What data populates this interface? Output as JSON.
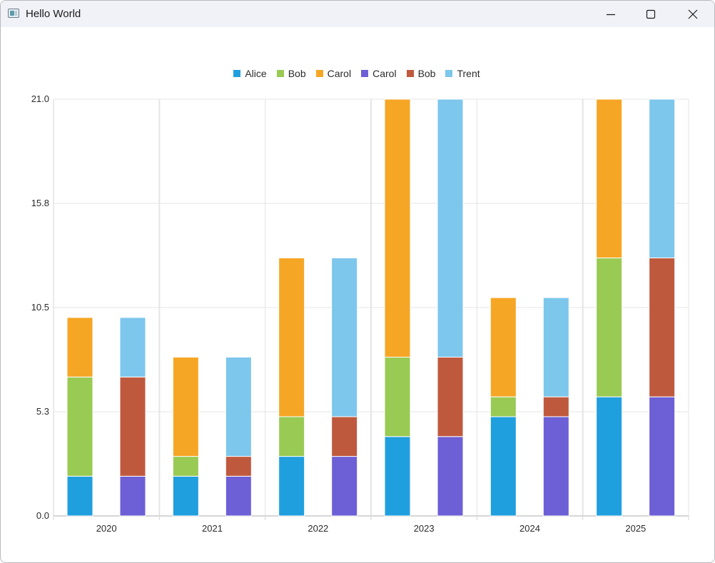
{
  "window": {
    "title": "Hello World",
    "minimize_icon": "minimize-icon",
    "maximize_icon": "maximize-icon",
    "close_icon": "close-icon"
  },
  "colors": {
    "Alice": "#209fdf",
    "Bob": "#99ca53",
    "Carol": "#f6a625",
    "Carol2": "#6d5fd5",
    "Bob2": "#bf593e",
    "Trent": "#7dc6ec",
    "grid": "#e4e4e4",
    "axis": "#d6d6d6"
  },
  "legend": [
    {
      "label": "Alice",
      "color": "#209fdf"
    },
    {
      "label": "Bob",
      "color": "#99ca53"
    },
    {
      "label": "Carol",
      "color": "#f6a625"
    },
    {
      "label": "Carol",
      "color": "#6d5fd5"
    },
    {
      "label": "Bob",
      "color": "#bf593e"
    },
    {
      "label": "Trent",
      "color": "#7dc6ec"
    }
  ],
  "chart_data": {
    "type": "bar",
    "stacked": true,
    "categories": [
      "2020",
      "2021",
      "2022",
      "2023",
      "2024",
      "2025"
    ],
    "ylim": [
      0,
      21.0
    ],
    "yticks": [
      "0.0",
      "5.3",
      "10.5",
      "15.8",
      "21.0"
    ],
    "grid": true,
    "legend_position": "top",
    "stacks": [
      {
        "name": "left",
        "series": [
          {
            "name": "Alice",
            "color": "#209fdf",
            "values": [
              2,
              2,
              3,
              4,
              5,
              6
            ]
          },
          {
            "name": "Bob",
            "color": "#99ca53",
            "values": [
              5,
              1,
              2,
              4,
              1,
              7
            ]
          },
          {
            "name": "Carol",
            "color": "#f6a625",
            "values": [
              3,
              5,
              8,
              13,
              5,
              8
            ]
          }
        ]
      },
      {
        "name": "right",
        "series": [
          {
            "name": "Carol",
            "color": "#6d5fd5",
            "values": [
              2,
              2,
              3,
              4,
              5,
              6
            ]
          },
          {
            "name": "Bob",
            "color": "#bf593e",
            "values": [
              5,
              1,
              2,
              4,
              1,
              7
            ]
          },
          {
            "name": "Trent",
            "color": "#7dc6ec",
            "values": [
              3,
              5,
              8,
              13,
              5,
              8
            ]
          }
        ]
      }
    ]
  }
}
